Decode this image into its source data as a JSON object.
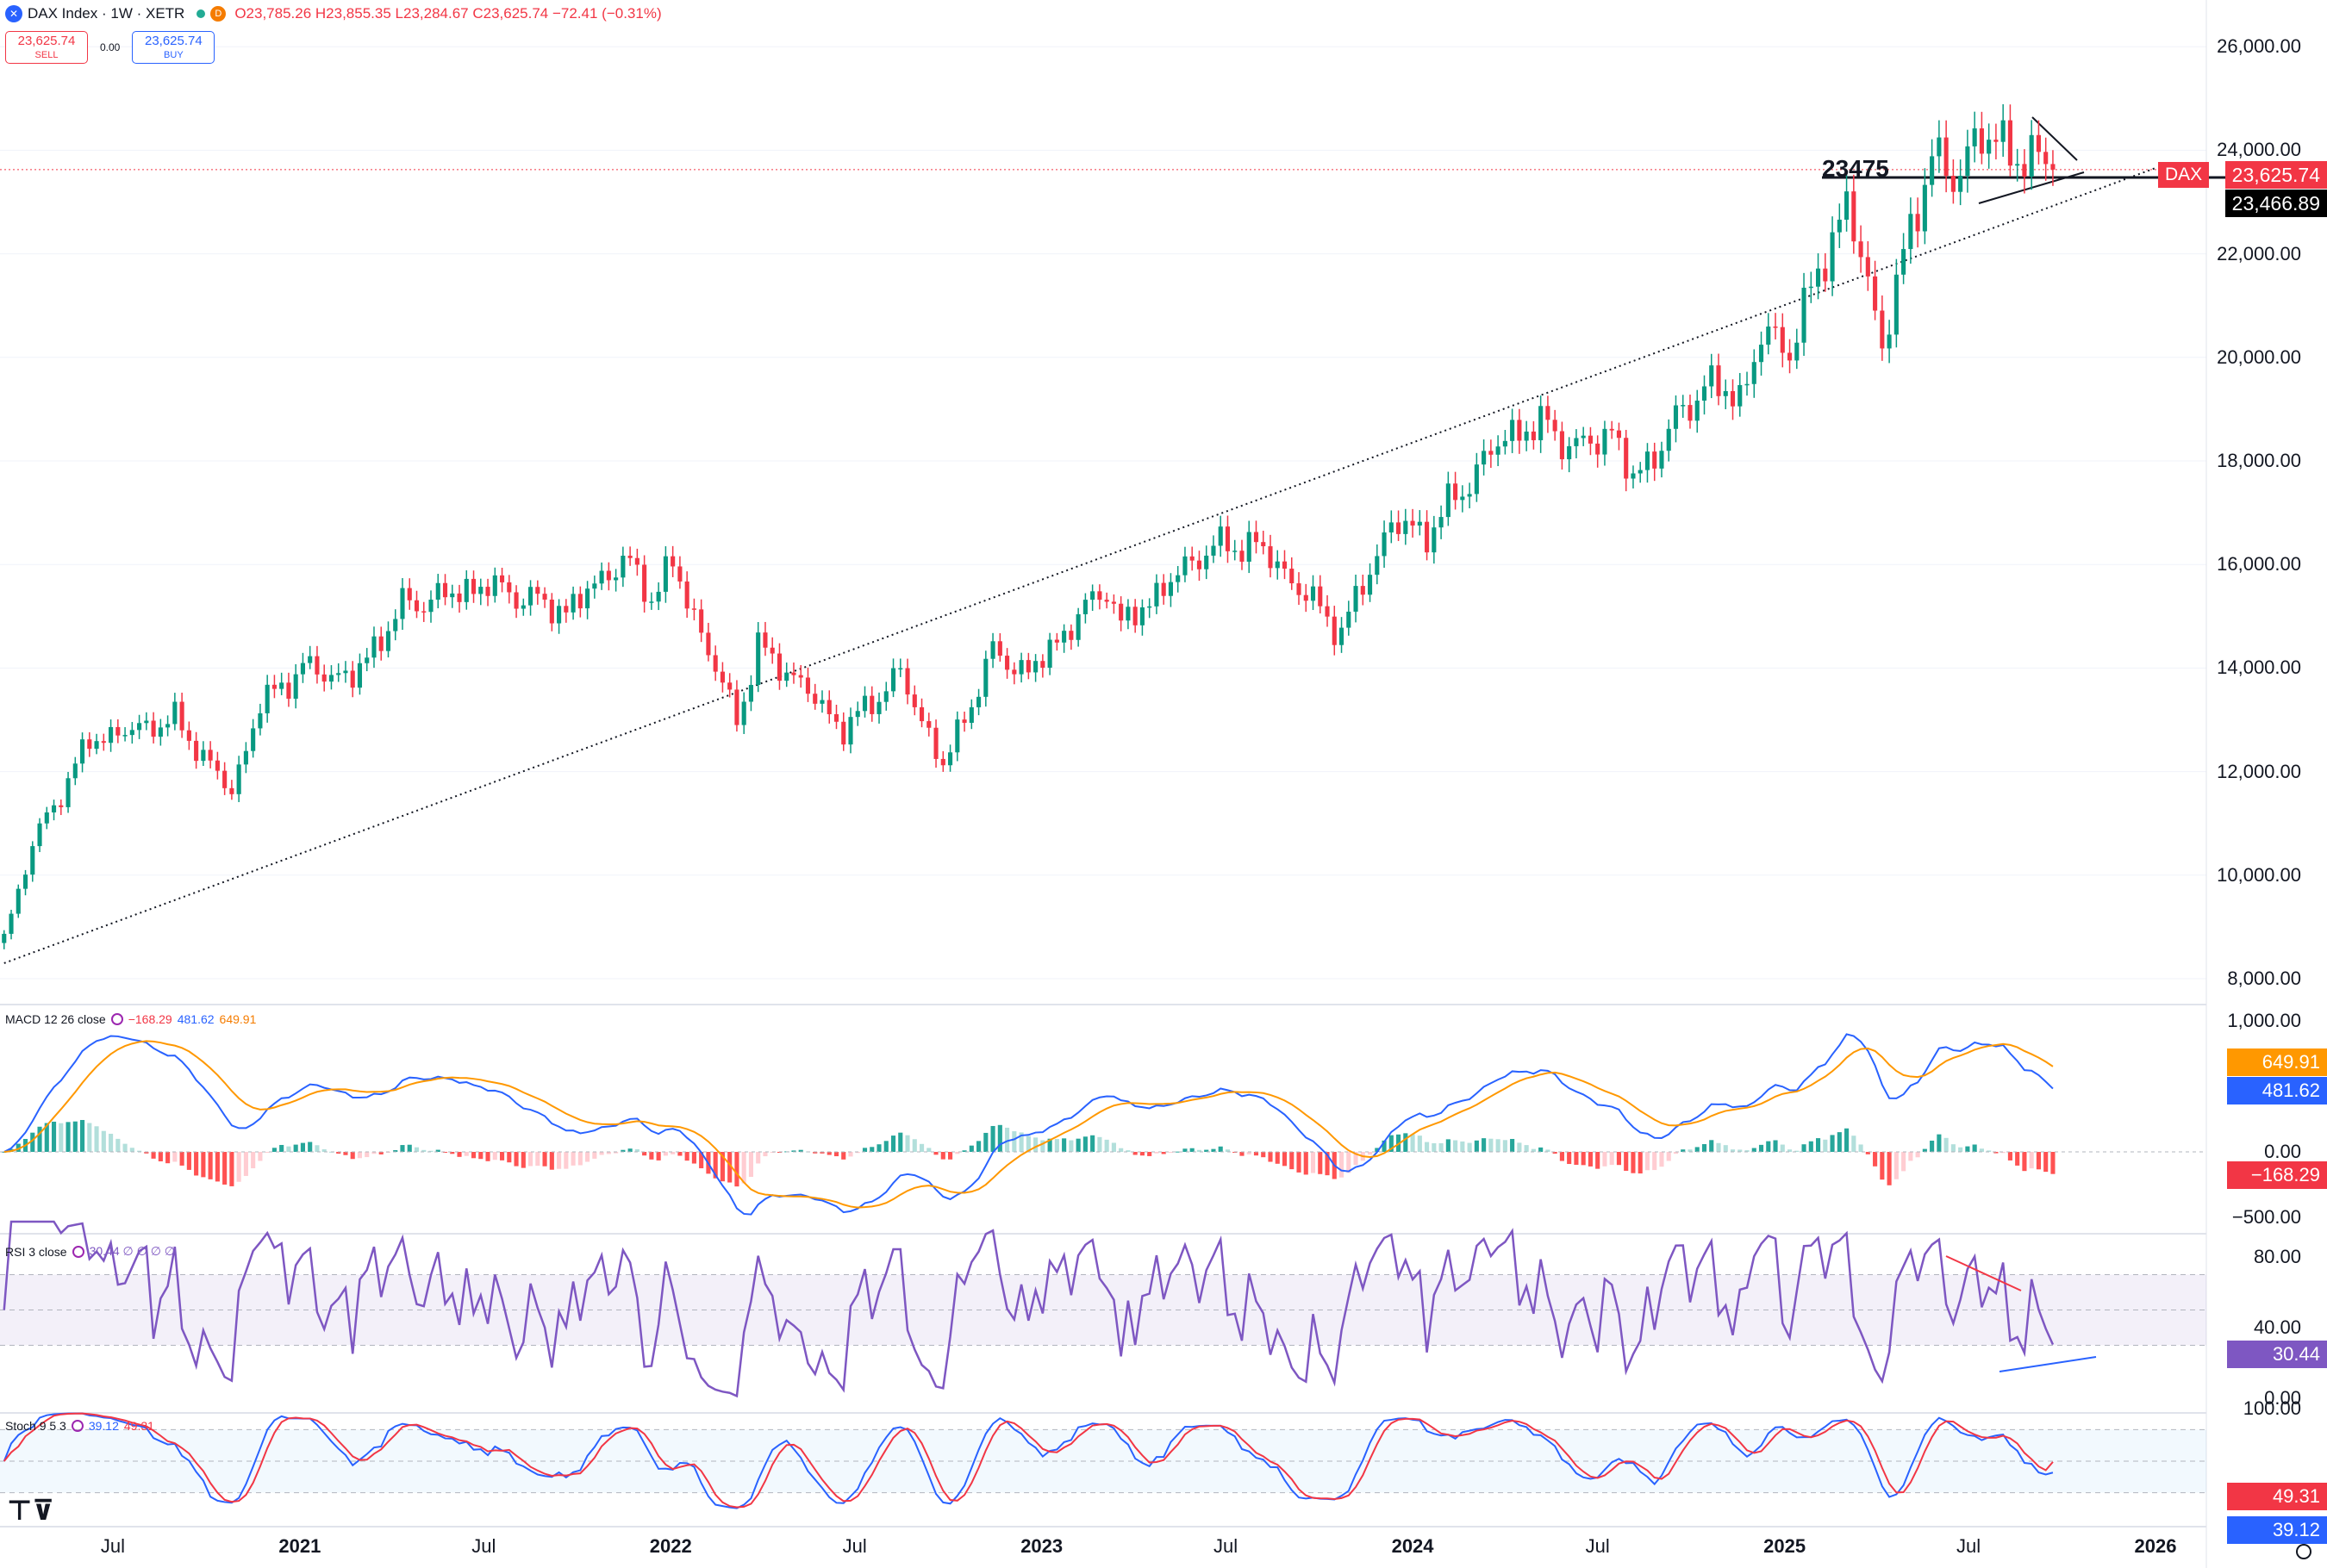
{
  "header": {
    "symbol": "DAX Index · 1W · XETR",
    "delay_badge": "D",
    "ohlc": "O23,785.26 H23,855.35 L23,284.67 C23,625.74 −72.41 (−0.31%)"
  },
  "trade": {
    "sell_price": "23,625.74",
    "sell_label": "SELL",
    "spread": "0.00",
    "buy_price": "23,625.74",
    "buy_label": "BUY"
  },
  "panes": {
    "macd": {
      "label": "MACD 12 26 close",
      "v1": "−168.29",
      "v2": "481.62",
      "v3": "649.91"
    },
    "rsi": {
      "label": "RSI 3 close",
      "values": "30.44 ∅ ∅ ∅ ∅"
    },
    "stoch": {
      "label": "Stoch 9 5 3",
      "v1": "39.12",
      "v2": "49.31"
    }
  },
  "price_axis": [
    "26,000.00",
    "24,000.00",
    "22,000.00",
    "20,000.00",
    "18,000.00",
    "16,000.00",
    "14,000.00",
    "12,000.00",
    "10,000.00",
    "8,000.00"
  ],
  "macd_axis": [
    "1,000.00",
    "0.00",
    "−500.00"
  ],
  "rsi_axis": [
    "80.00",
    "40.00",
    "0.00"
  ],
  "stoch_axis": [
    "100.00"
  ],
  "time_axis": [
    {
      "label": "Jul",
      "bold": false
    },
    {
      "label": "2021",
      "bold": true
    },
    {
      "label": "Jul",
      "bold": false
    },
    {
      "label": "2022",
      "bold": true
    },
    {
      "label": "Jul",
      "bold": false
    },
    {
      "label": "2023",
      "bold": true
    },
    {
      "label": "Jul",
      "bold": false
    },
    {
      "label": "2024",
      "bold": true
    },
    {
      "label": "Jul",
      "bold": false
    },
    {
      "label": "2025",
      "bold": true
    },
    {
      "label": "Jul",
      "bold": false
    },
    {
      "label": "2026",
      "bold": true
    }
  ],
  "tags": {
    "dax_name": "DAX",
    "last_price": "23,625.74",
    "level_price": "23,466.89",
    "macd_signal": "649.91",
    "macd_line": "481.62",
    "macd_hist": "−168.29",
    "rsi": "30.44",
    "stoch_d": "49.31",
    "stoch_k": "39.12"
  },
  "annotation": "23475",
  "colors": {
    "up": "#089981",
    "down": "#f23645",
    "macd": "#2962ff",
    "signal": "#ff9800",
    "rsi": "#7e57c2"
  },
  "chart_data": {
    "type": "candlestick",
    "timeframe": "1W",
    "ylim": [
      8000,
      26500
    ],
    "last_close": 23625.74,
    "support_level": 23475,
    "anchors": [
      {
        "date": "2020-03-16",
        "close": 8800
      },
      {
        "date": "2020-04-13",
        "close": 10600
      },
      {
        "date": "2020-06-08",
        "close": 12600
      },
      {
        "date": "2020-08-31",
        "close": 13000
      },
      {
        "date": "2020-10-26",
        "close": 11600
      },
      {
        "date": "2020-11-23",
        "close": 13300
      },
      {
        "date": "2021-01-04",
        "close": 14000
      },
      {
        "date": "2021-02-22",
        "close": 13800
      },
      {
        "date": "2021-04-12",
        "close": 15200
      },
      {
        "date": "2021-07-05",
        "close": 15600
      },
      {
        "date": "2021-09-20",
        "close": 15100
      },
      {
        "date": "2021-11-15",
        "close": 16100
      },
      {
        "date": "2021-12-13",
        "close": 15400
      },
      {
        "date": "2022-01-03",
        "close": 16000
      },
      {
        "date": "2022-03-07",
        "close": 13000
      },
      {
        "date": "2022-03-28",
        "close": 14400
      },
      {
        "date": "2022-05-09",
        "close": 13700
      },
      {
        "date": "2022-06-20",
        "close": 12800
      },
      {
        "date": "2022-08-15",
        "close": 13900
      },
      {
        "date": "2022-09-26",
        "close": 12100
      },
      {
        "date": "2022-11-14",
        "close": 14300
      },
      {
        "date": "2022-12-19",
        "close": 13900
      },
      {
        "date": "2023-03-06",
        "close": 15600
      },
      {
        "date": "2023-03-20",
        "close": 14800
      },
      {
        "date": "2023-06-12",
        "close": 16300
      },
      {
        "date": "2023-07-31",
        "close": 16400
      },
      {
        "date": "2023-10-23",
        "close": 14700
      },
      {
        "date": "2023-12-11",
        "close": 16800
      },
      {
        "date": "2024-01-15",
        "close": 16600
      },
      {
        "date": "2024-04-01",
        "close": 18500
      },
      {
        "date": "2024-05-13",
        "close": 18700
      },
      {
        "date": "2024-06-10",
        "close": 18200
      },
      {
        "date": "2024-07-15",
        "close": 18600
      },
      {
        "date": "2024-08-05",
        "close": 17600
      },
      {
        "date": "2024-10-14",
        "close": 19500
      },
      {
        "date": "2024-11-18",
        "close": 19200
      },
      {
        "date": "2024-12-09",
        "close": 20400
      },
      {
        "date": "2025-01-06",
        "close": 20200
      },
      {
        "date": "2025-03-03",
        "close": 23000
      },
      {
        "date": "2025-04-07",
        "close": 20300
      },
      {
        "date": "2025-05-26",
        "close": 24000
      },
      {
        "date": "2025-06-16",
        "close": 23300
      },
      {
        "date": "2025-07-07",
        "close": 24300
      },
      {
        "date": "2025-08-11",
        "close": 24000
      },
      {
        "date": "2025-09-22",
        "close": 23625
      }
    ],
    "trendline": {
      "from": {
        "date": "2020-03-16",
        "value": 8300
      },
      "to": {
        "date": "2025-12-31",
        "value": 23650
      }
    },
    "macd": {
      "fast": 12,
      "slow": 26,
      "last": {
        "hist": -168.29,
        "macd": 481.62,
        "signal": 649.91
      },
      "ylim": [
        -650,
        1150
      ]
    },
    "rsi": {
      "length": 3,
      "last": 30.44,
      "bands": [
        30,
        70
      ],
      "ylim": [
        0,
        100
      ]
    },
    "stoch": {
      "params": [
        9,
        5,
        3
      ],
      "last": {
        "k": 39.12,
        "d": 49.31
      },
      "bands": [
        20,
        80
      ],
      "ylim": [
        0,
        100
      ]
    }
  }
}
